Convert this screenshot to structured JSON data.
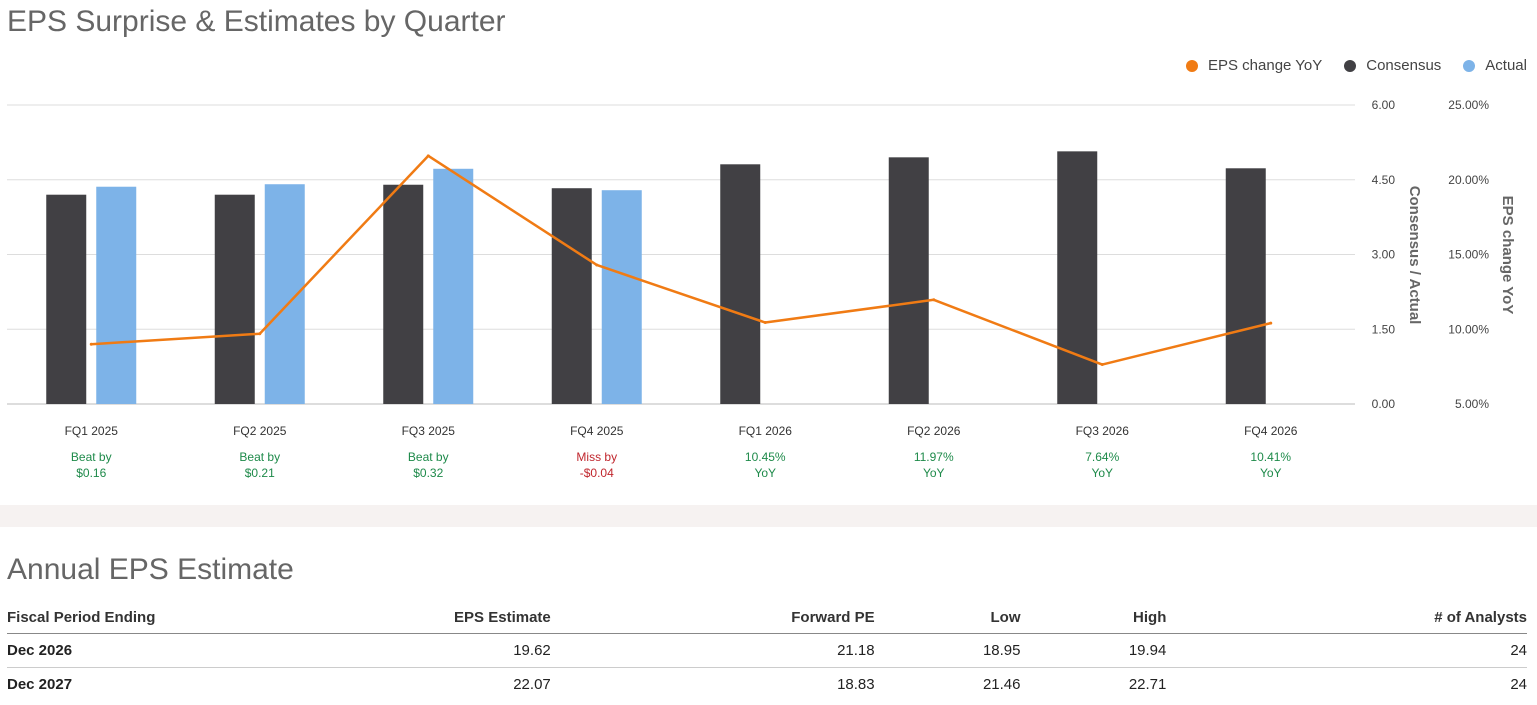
{
  "title": "EPS Surprise & Estimates by Quarter",
  "legend": [
    {
      "label": "EPS change YoY",
      "color": "#f07b14"
    },
    {
      "label": "Consensus",
      "color": "#414044"
    },
    {
      "label": "Actual",
      "color": "#7db3e8"
    }
  ],
  "chart_data": {
    "type": "bar",
    "categories": [
      "FQ1 2025",
      "FQ2 2025",
      "FQ3 2025",
      "FQ4 2025",
      "FQ1 2026",
      "FQ2 2026",
      "FQ3 2026",
      "FQ4 2026"
    ],
    "series": [
      {
        "name": "Consensus",
        "values": [
          4.2,
          4.2,
          4.4,
          4.33,
          4.81,
          4.95,
          5.07,
          4.73
        ],
        "color": "#414044",
        "axis": "left"
      },
      {
        "name": "Actual",
        "values": [
          4.36,
          4.41,
          4.72,
          4.29,
          null,
          null,
          null,
          null
        ],
        "color": "#7db3e8",
        "axis": "left"
      },
      {
        "name": "EPS change YoY",
        "type": "line",
        "values": [
          9.0,
          9.7,
          21.6,
          14.3,
          10.45,
          11.97,
          7.64,
          10.41
        ],
        "color": "#f07b14",
        "axis": "right"
      }
    ],
    "ylabel": "Consensus / Actual",
    "ylim": [
      0,
      6
    ],
    "yticks": [
      "0.00",
      "1.50",
      "3.00",
      "4.50",
      "6.00"
    ],
    "y2label": "EPS change YoY",
    "y2lim": [
      5,
      25
    ],
    "y2ticks": [
      "5.00%",
      "10.00%",
      "15.00%",
      "20.00%",
      "25.00%"
    ],
    "grid": true,
    "legend_position": "top-right",
    "annotations": [
      {
        "line1": "Beat by",
        "line2": "$0.16",
        "status": "beat"
      },
      {
        "line1": "Beat by",
        "line2": "$0.21",
        "status": "beat"
      },
      {
        "line1": "Beat by",
        "line2": "$0.32",
        "status": "beat"
      },
      {
        "line1": "Miss by",
        "line2": "-$0.04",
        "status": "miss"
      },
      {
        "line1": "10.45%",
        "line2": "YoY",
        "status": "beat"
      },
      {
        "line1": "11.97%",
        "line2": "YoY",
        "status": "beat"
      },
      {
        "line1": "7.64%",
        "line2": "YoY",
        "status": "beat"
      },
      {
        "line1": "10.41%",
        "line2": "YoY",
        "status": "beat"
      }
    ],
    "colors": {
      "beat": "#1e8a4a",
      "miss": "#c0262d",
      "grid": "#dddddd"
    }
  },
  "annual": {
    "title": "Annual EPS Estimate",
    "headers": [
      "Fiscal Period Ending",
      "EPS Estimate",
      "Forward PE",
      "Low",
      "High",
      "# of Analysts"
    ],
    "rows": [
      [
        "Dec 2026",
        "19.62",
        "21.18",
        "18.95",
        "19.94",
        "24"
      ],
      [
        "Dec 2027",
        "22.07",
        "18.83",
        "21.46",
        "22.71",
        "24"
      ]
    ]
  }
}
